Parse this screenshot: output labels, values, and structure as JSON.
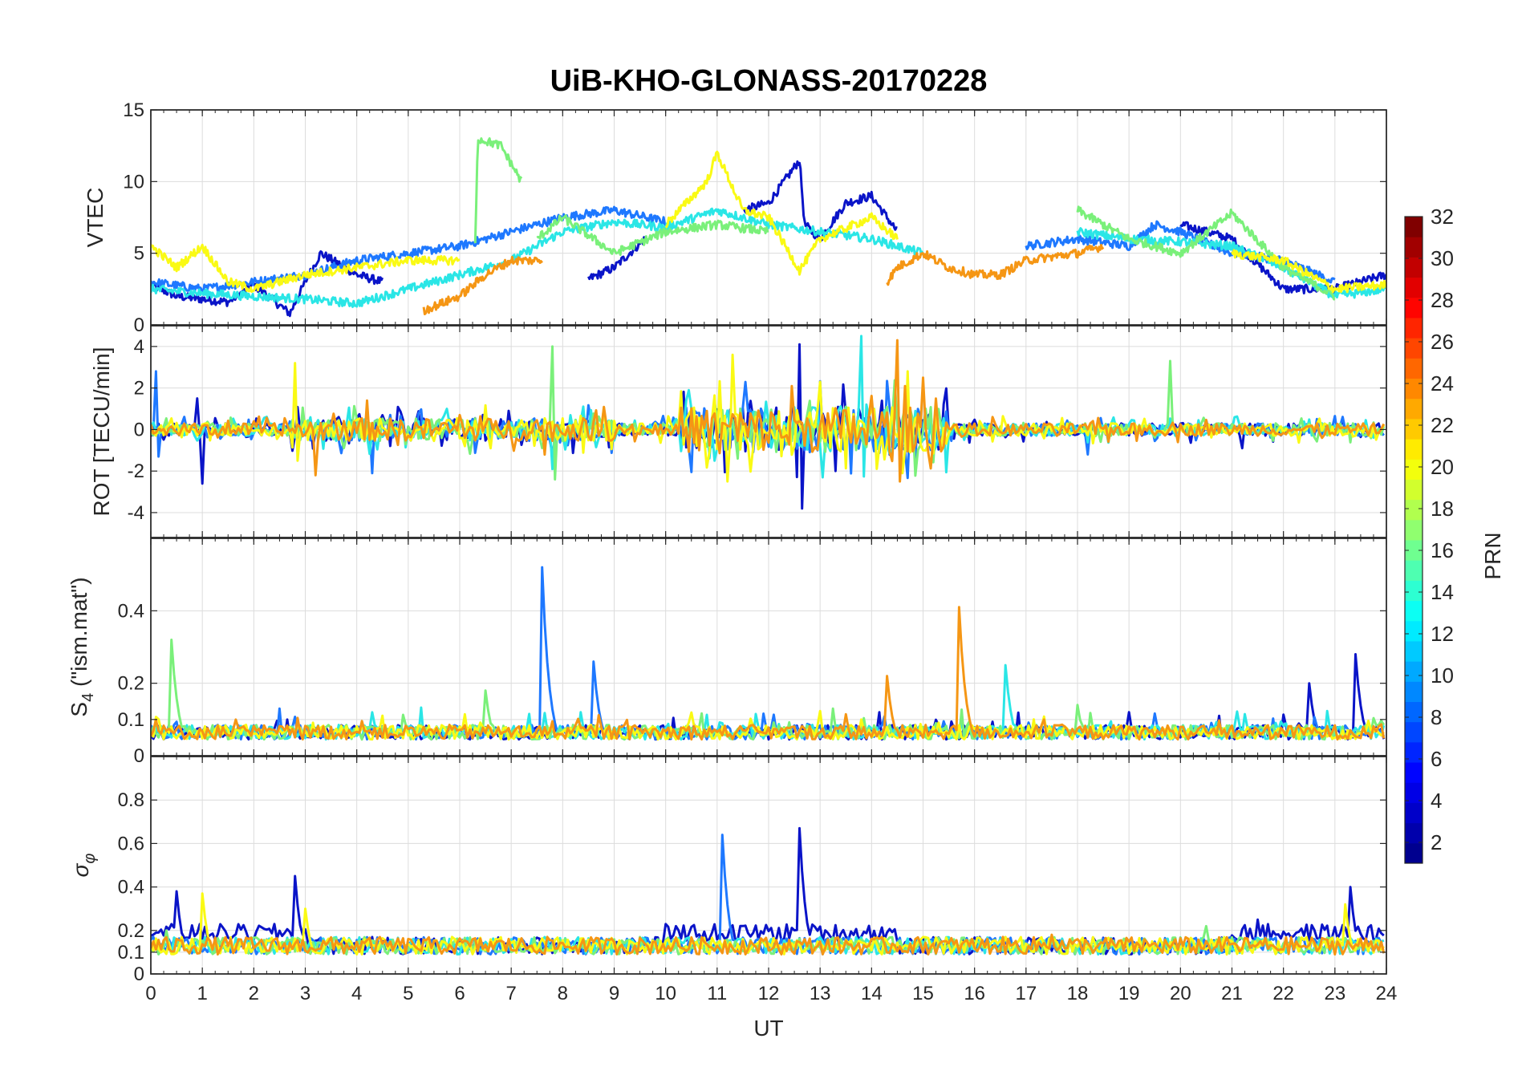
{
  "chart_data": {
    "type": "line",
    "title": "UiB-KHO-GLONASS-20170228",
    "xlabel": "UT",
    "xlim": [
      0,
      24
    ],
    "xticks": [
      0,
      1,
      2,
      3,
      4,
      5,
      6,
      7,
      8,
      9,
      10,
      11,
      12,
      13,
      14,
      15,
      16,
      17,
      18,
      19,
      20,
      21,
      22,
      23,
      24
    ],
    "grid": true,
    "panels": [
      {
        "id": "vtec",
        "ylabel": "VTEC",
        "ylim": [
          0,
          15
        ],
        "yticks": [
          0,
          5,
          10,
          15
        ]
      },
      {
        "id": "rot",
        "ylabel": "ROT [TECU/min]",
        "ylim": [
          -5.2,
          5
        ],
        "yticks": [
          -4,
          -2,
          0,
          2,
          4
        ]
      },
      {
        "id": "s4",
        "ylabel_main": "S",
        "ylabel_sub": "4",
        "ylabel_rest": " (\"ism.mat\")",
        "ylim": [
          0,
          0.6
        ],
        "yticks": [
          0,
          0.1,
          0.2,
          0.4
        ]
      },
      {
        "id": "sigma",
        "ylabel_main": "σ",
        "ylabel_sub": "φ",
        "ylim": [
          0,
          1
        ],
        "yticks": [
          0,
          0.1,
          0.2,
          0.4,
          0.6,
          0.8
        ]
      }
    ],
    "colorbar": {
      "label": "PRN",
      "range": [
        1,
        32
      ],
      "ticks": [
        2,
        4,
        6,
        8,
        10,
        12,
        14,
        16,
        18,
        20,
        22,
        24,
        26,
        28,
        30,
        32
      ],
      "colormap": "jet",
      "colors": [
        "#00008f",
        "#0000ff",
        "#0080ff",
        "#00ffff",
        "#80ff80",
        "#ffff00",
        "#ff8000",
        "#ff0000",
        "#800000"
      ]
    },
    "series": [
      {
        "prn": 2,
        "color": "#0a14c8",
        "vtec": [
          [
            0,
            2.8
          ],
          [
            0.5,
            2
          ],
          [
            1,
            1.8
          ],
          [
            1.5,
            1.6
          ],
          [
            2,
            2.8
          ],
          [
            2.7,
            0.8
          ],
          [
            3,
            3
          ],
          [
            3.3,
            5
          ],
          [
            4,
            3.5
          ],
          [
            4.5,
            3
          ]
        ],
        "vtec2": [
          [
            8.5,
            3.2
          ],
          [
            9,
            4
          ],
          [
            9.3,
            5
          ],
          [
            9.6,
            6
          ]
        ],
        "vtec3": [
          [
            11.5,
            8
          ],
          [
            12,
            8.5
          ],
          [
            12.6,
            11.5
          ],
          [
            12.7,
            7
          ],
          [
            13,
            6
          ],
          [
            13.5,
            8.5
          ],
          [
            14,
            9
          ],
          [
            14.5,
            6.5
          ]
        ],
        "vtec4": [
          [
            20,
            7
          ],
          [
            21,
            6
          ],
          [
            22,
            2.5
          ],
          [
            23,
            2.5
          ],
          [
            24,
            3.5
          ]
        ],
        "rot_spikes": [
          [
            1,
            -2.6
          ],
          [
            12.6,
            4.1
          ],
          [
            12.65,
            -3.8
          ],
          [
            0.9,
            1.5
          ],
          [
            21.2,
            -0.9
          ]
        ],
        "s4_spikes": [
          [
            23.4,
            0.28
          ],
          [
            22.5,
            0.2
          ]
        ],
        "sig_spikes": [
          [
            2.8,
            0.45
          ],
          [
            12.6,
            0.67
          ],
          [
            0.5,
            0.38
          ],
          [
            23.3,
            0.4
          ],
          [
            10.2,
            0.22
          ],
          [
            21.5,
            0.25
          ]
        ]
      },
      {
        "prn": 8,
        "color": "#1e78ff",
        "vtec": [
          [
            0,
            3
          ],
          [
            1,
            2.5
          ],
          [
            2,
            3
          ],
          [
            3,
            3.5
          ],
          [
            4,
            4.5
          ],
          [
            5,
            5
          ],
          [
            6,
            5.5
          ],
          [
            7,
            6.5
          ],
          [
            8,
            7.5
          ],
          [
            9,
            8
          ],
          [
            10,
            7.2
          ]
        ],
        "vtec2": [
          [
            17,
            5.5
          ],
          [
            18,
            6
          ],
          [
            19,
            5.5
          ],
          [
            19.5,
            7
          ],
          [
            20,
            6.5
          ],
          [
            21,
            5
          ],
          [
            22,
            4.5
          ],
          [
            23,
            3
          ]
        ],
        "rot_spikes": [
          [
            0.1,
            2.8
          ],
          [
            0.15,
            -1.3
          ],
          [
            4.3,
            -2.1
          ],
          [
            18.2,
            -1.2
          ]
        ],
        "s4_spikes": [
          [
            7.6,
            0.52
          ],
          [
            8.6,
            0.26
          ]
        ],
        "sig_spikes": [
          [
            11.1,
            0.64
          ],
          [
            8.2,
            0.15
          ]
        ]
      },
      {
        "prn": 13,
        "color": "#2ae6e6",
        "vtec": [
          [
            0,
            2.5
          ],
          [
            1,
            2.2
          ],
          [
            2,
            2
          ],
          [
            3,
            1.8
          ],
          [
            4,
            1.5
          ],
          [
            5,
            2.5
          ],
          [
            6,
            3.5
          ],
          [
            7,
            4.5
          ],
          [
            8,
            6.5
          ],
          [
            9,
            7.2
          ],
          [
            10,
            6.8
          ],
          [
            11,
            8
          ],
          [
            12,
            7
          ],
          [
            13,
            6.5
          ],
          [
            14,
            6
          ],
          [
            15,
            5
          ]
        ],
        "vtec2": [
          [
            18,
            6.5
          ],
          [
            19,
            6
          ],
          [
            20,
            5.8
          ],
          [
            21,
            5.5
          ],
          [
            22,
            4
          ],
          [
            23,
            2
          ],
          [
            24,
            2.5
          ]
        ],
        "rot_spikes": [
          [
            13.8,
            4.5
          ],
          [
            7.8,
            -1.9
          ]
        ],
        "s4_spikes": [
          [
            16.6,
            0.25
          ],
          [
            4.3,
            0.12
          ]
        ],
        "sig_spikes": [
          [
            7,
            0.16
          ]
        ]
      },
      {
        "prn": 16,
        "color": "#7af07a",
        "vtec": [
          [
            6.3,
            5.5
          ],
          [
            6.35,
            13
          ],
          [
            6.8,
            12.5
          ],
          [
            7.2,
            10
          ]
        ],
        "vtec2": [
          [
            7.5,
            6
          ],
          [
            8,
            7.5
          ],
          [
            9,
            5
          ],
          [
            10,
            6.5
          ],
          [
            11,
            7
          ],
          [
            12,
            6.5
          ]
        ],
        "vtec3": [
          [
            18,
            8
          ],
          [
            19,
            6
          ],
          [
            20,
            5
          ],
          [
            21,
            7.8
          ],
          [
            22,
            4
          ],
          [
            23,
            2
          ]
        ],
        "rot_spikes": [
          [
            7.8,
            4
          ],
          [
            7.85,
            -2.4
          ],
          [
            19.8,
            3.3
          ]
        ],
        "s4_spikes": [
          [
            0.4,
            0.32
          ],
          [
            6.5,
            0.18
          ],
          [
            18,
            0.14
          ]
        ],
        "sig_spikes": [
          [
            0.3,
            0.2
          ],
          [
            20.5,
            0.22
          ]
        ]
      },
      {
        "prn": 20,
        "color": "#fafa14",
        "vtec": [
          [
            0,
            5.5
          ],
          [
            0.5,
            4
          ],
          [
            1,
            5.5
          ],
          [
            1.5,
            3
          ],
          [
            2,
            2.5
          ],
          [
            3,
            3.5
          ],
          [
            4,
            4
          ],
          [
            5,
            4.5
          ],
          [
            6,
            4.5
          ]
        ],
        "vtec2": [
          [
            10,
            7
          ],
          [
            10.8,
            10
          ],
          [
            11,
            12
          ],
          [
            11.5,
            8
          ],
          [
            12,
            7.5
          ],
          [
            12.6,
            3.8
          ],
          [
            13,
            6
          ],
          [
            14,
            7.5
          ],
          [
            14.5,
            6
          ]
        ],
        "vtec3": [
          [
            21,
            5
          ],
          [
            22,
            4.5
          ],
          [
            23,
            2.5
          ],
          [
            24,
            2.8
          ]
        ],
        "rot_spikes": [
          [
            2.8,
            3.2
          ],
          [
            2.85,
            -1.5
          ],
          [
            11.2,
            -2.5
          ],
          [
            11.3,
            3.6
          ],
          [
            14.6,
            -2.1
          ],
          [
            14.7,
            2.8
          ]
        ],
        "s4_spikes": [
          [
            13.8,
            0.1
          ]
        ],
        "sig_spikes": [
          [
            1,
            0.37
          ],
          [
            23.2,
            0.32
          ],
          [
            3,
            0.3
          ]
        ]
      },
      {
        "prn": 23,
        "color": "#f59614",
        "vtec": [
          [
            5.3,
            1
          ],
          [
            6,
            2
          ],
          [
            6.5,
            3.5
          ],
          [
            7,
            4.5
          ],
          [
            7.6,
            4.5
          ]
        ],
        "vtec2": [
          [
            14.3,
            3
          ],
          [
            14.5,
            4
          ],
          [
            15,
            5
          ],
          [
            15.5,
            4
          ],
          [
            16,
            3.5
          ],
          [
            16.5,
            3.5
          ],
          [
            17,
            4.5
          ],
          [
            18,
            5
          ],
          [
            18.5,
            5.5
          ]
        ],
        "rot_spikes": [
          [
            14.5,
            4.3
          ],
          [
            14.55,
            -2.5
          ],
          [
            15,
            2.5
          ],
          [
            4.2,
            1.4
          ],
          [
            3.2,
            -2.2
          ]
        ],
        "s4_spikes": [
          [
            15.7,
            0.41
          ],
          [
            14.3,
            0.22
          ]
        ],
        "sig_spikes": [
          [
            5.5,
            0.15
          ],
          [
            17.5,
            0.18
          ]
        ]
      }
    ]
  }
}
